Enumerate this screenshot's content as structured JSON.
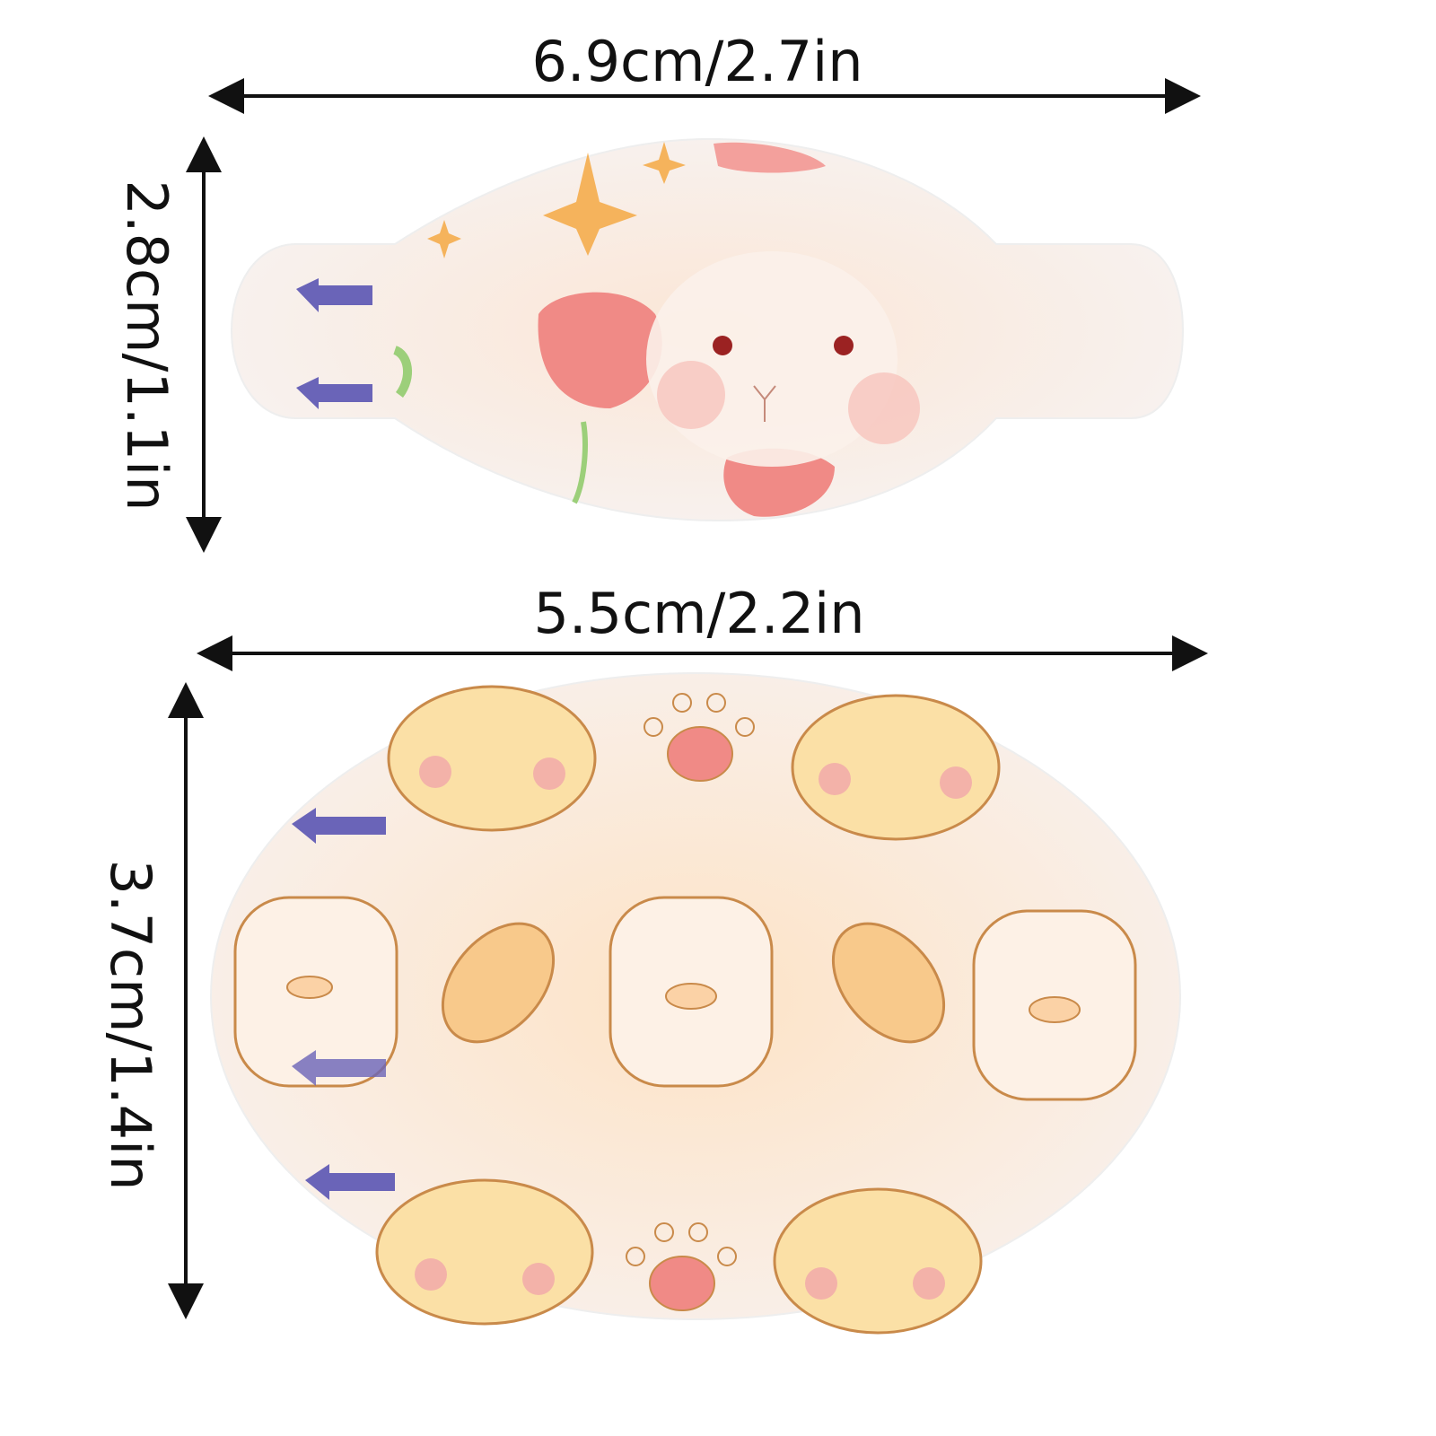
{
  "top_patch": {
    "width_label": "6.9cm/2.7in",
    "height_label": "2.8cm/1.1in",
    "theme": "bunny-with-flowers"
  },
  "bottom_patch": {
    "width_label": "5.5cm/2.2in",
    "height_label": "3.7cm/1.4in",
    "theme": "cartoon-animals-and-paws"
  },
  "colors": {
    "arrow": "#111111",
    "pink": "#f08a86",
    "orange": "#f2b15c",
    "purple": "#6a64b8",
    "outline": "#c98a4a"
  }
}
